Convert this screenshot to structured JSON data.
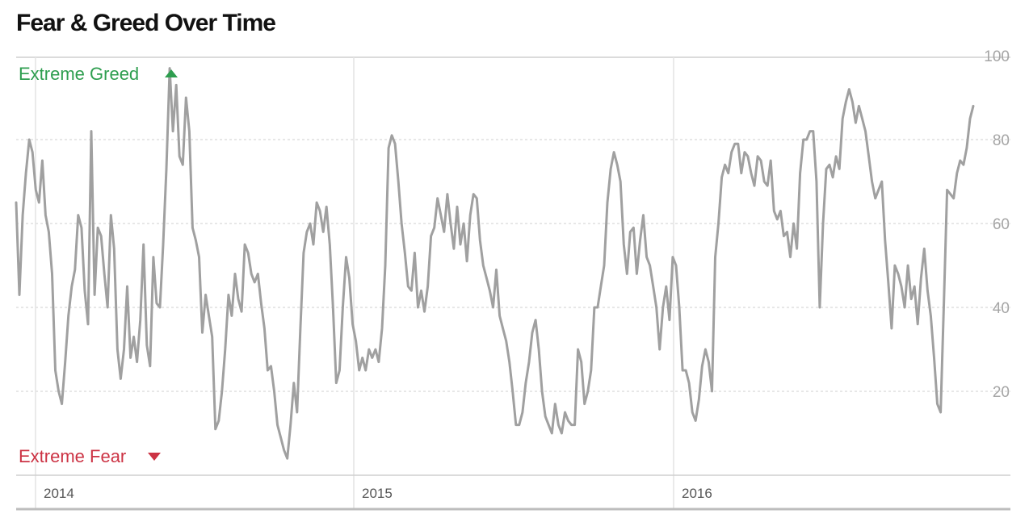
{
  "chart_data": {
    "type": "line",
    "title": "Fear & Greed Over Time",
    "annotations": {
      "top": "Extreme Greed",
      "bottom": "Extreme Fear"
    },
    "ylim": [
      0,
      100
    ],
    "y_ticks": [
      20,
      40,
      60,
      80,
      100
    ],
    "x_ticks": [
      "2014",
      "2015",
      "2016"
    ],
    "grid": true,
    "colors": {
      "line": "#a0a0a0",
      "greed": "#2e9e4f",
      "fear": "#cc3344",
      "grid": "#cfcfcf"
    },
    "series": [
      {
        "values": [
          65,
          43,
          62,
          72,
          80,
          77,
          68,
          65,
          75,
          62,
          58,
          48,
          25,
          20,
          17,
          27,
          38,
          45,
          49,
          62,
          59,
          44,
          36,
          82,
          43,
          59,
          57,
          48,
          40,
          62,
          54,
          30,
          23,
          30,
          45,
          28,
          33,
          27,
          37,
          55,
          31,
          26,
          52,
          41,
          40,
          55,
          73,
          97,
          82,
          93,
          76,
          74,
          90,
          82,
          59,
          56,
          52,
          34,
          43,
          38,
          33,
          11,
          13,
          20,
          30,
          43,
          38,
          48,
          42,
          39,
          55,
          53,
          48,
          46,
          48,
          41,
          35,
          25,
          26,
          20,
          12,
          9,
          6,
          4,
          12,
          22,
          15,
          35,
          53,
          58,
          60,
          55,
          65,
          63,
          58,
          64,
          55,
          40,
          22,
          25,
          40,
          52,
          47,
          36,
          32,
          25,
          28,
          25,
          30,
          28,
          30,
          27,
          35,
          50,
          78,
          81,
          79,
          70,
          60,
          53,
          45,
          44,
          53,
          40,
          44,
          39,
          45,
          57,
          59,
          66,
          62,
          58,
          67,
          60,
          54,
          64,
          55,
          60,
          51,
          62,
          67,
          66,
          56,
          50,
          47,
          44,
          40,
          49,
          38,
          35,
          32,
          27,
          20,
          12,
          12,
          15,
          22,
          27,
          34,
          37,
          30,
          20,
          14,
          12,
          10,
          17,
          12,
          10,
          15,
          13,
          12,
          12,
          30,
          27,
          17,
          20,
          25,
          40,
          40,
          45,
          50,
          65,
          73,
          77,
          74,
          70,
          55,
          48,
          58,
          59,
          48,
          56,
          62,
          52,
          50,
          45,
          40,
          30,
          40,
          45,
          37,
          52,
          50,
          40,
          25,
          25,
          22,
          15,
          13,
          18,
          26,
          30,
          27,
          20,
          52,
          60,
          71,
          74,
          72,
          77,
          79,
          79,
          72,
          77,
          76,
          72,
          69,
          76,
          75,
          70,
          69,
          75,
          63,
          61,
          63,
          57,
          58,
          52,
          60,
          54,
          72,
          80,
          80,
          82,
          82,
          70,
          40,
          60,
          73,
          74,
          71,
          76,
          73,
          85,
          89,
          92,
          89,
          84,
          88,
          85,
          82,
          76,
          70,
          66,
          68,
          70,
          56,
          46,
          35,
          50,
          48,
          45,
          40,
          50,
          42,
          45,
          36,
          47,
          54,
          44,
          38,
          28,
          17,
          15,
          41,
          68,
          67,
          66,
          72,
          75,
          74,
          78,
          85,
          88
        ]
      }
    ]
  }
}
